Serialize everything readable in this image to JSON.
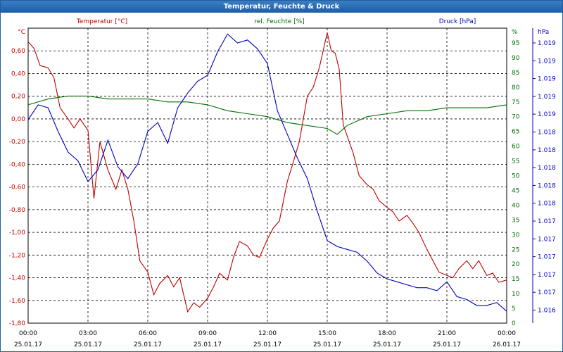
{
  "window": {
    "title": "Temperatur, Feuchte & Druck"
  },
  "chart_data": {
    "type": "line",
    "grid": true,
    "x_ticks": [
      {
        "time": "00:00",
        "date": "25.01.17"
      },
      {
        "time": "03:00",
        "date": "25.01.17"
      },
      {
        "time": "06:00",
        "date": "25.01.17"
      },
      {
        "time": "09:00",
        "date": "25.01.17"
      },
      {
        "time": "12:00",
        "date": "25.01.17"
      },
      {
        "time": "15:00",
        "date": "25.01.17"
      },
      {
        "time": "18:00",
        "date": "25.01.17"
      },
      {
        "time": "21:00",
        "date": "25.01.17"
      },
      {
        "time": "00:00",
        "date": "26.01.17"
      }
    ],
    "axes": {
      "temperature": {
        "label": "Temperatur [°C]",
        "unit": "°C",
        "color": "#c00000",
        "ylim": [
          -1.8,
          0.8
        ],
        "ticks": [
          "0,60",
          "0,40",
          "0,20",
          "0,00",
          "-0,20",
          "-0,40",
          "-0,60",
          "-0,80",
          "-1,00",
          "-1,20",
          "-1,40",
          "-1,60",
          "-1,80"
        ],
        "tick_values": [
          0.6,
          0.4,
          0.2,
          0.0,
          -0.2,
          -0.4,
          -0.6,
          -0.8,
          -1.0,
          -1.2,
          -1.4,
          -1.6,
          -1.8
        ]
      },
      "humidity": {
        "label": "rel. Feuchte [%]",
        "unit": "%",
        "color": "#007000",
        "ylim": [
          0,
          100
        ],
        "ticks": [
          "95",
          "90",
          "85",
          "80",
          "75",
          "70",
          "65",
          "60",
          "55",
          "50",
          "45",
          "40",
          "35",
          "30",
          "25",
          "20",
          "15",
          "10",
          "5",
          "0"
        ],
        "tick_values": [
          95,
          90,
          85,
          80,
          75,
          70,
          65,
          60,
          55,
          50,
          45,
          40,
          35,
          30,
          25,
          20,
          15,
          10,
          5,
          0
        ]
      },
      "pressure": {
        "label": "Druck [hPa]",
        "unit": "hPa",
        "color": "#0000c0",
        "ticks": [
          "1.019",
          "1.019",
          "1.019",
          "1.019",
          "1.019",
          "1.018",
          "1.018",
          "1.018",
          "1.018",
          "1.018",
          "1.017",
          "1.017",
          "1.017",
          "1.017",
          "1.017",
          "1.016"
        ]
      }
    },
    "series": [
      {
        "name": "Temperatur [°C]",
        "axis": "temperature",
        "color": "#c00000",
        "x_hours": [
          0,
          0.3,
          0.6,
          1,
          1.3,
          1.6,
          2,
          2.3,
          2.6,
          3,
          3.3,
          3.6,
          4,
          4.4,
          4.7,
          5,
          5.3,
          5.6,
          6,
          6.3,
          6.6,
          7,
          7.3,
          7.6,
          8,
          8.3,
          8.6,
          9,
          9.3,
          9.6,
          10,
          10.3,
          10.6,
          11,
          11.3,
          11.6,
          12,
          12.3,
          12.6,
          13,
          13.3,
          13.6,
          14,
          14.3,
          14.6,
          15,
          15.2,
          15.4,
          15.6,
          15.8,
          16,
          16.3,
          16.6,
          17,
          17.3,
          17.6,
          18,
          18.3,
          18.6,
          19,
          19.3,
          19.6,
          20,
          20.3,
          20.6,
          21,
          21.3,
          21.6,
          22,
          22.3,
          22.6,
          23,
          23.3,
          23.6,
          24
        ],
        "values": [
          0.68,
          0.62,
          0.47,
          0.45,
          0.36,
          0.1,
          0.0,
          -0.08,
          0.0,
          -0.1,
          -0.7,
          -0.2,
          -0.45,
          -0.62,
          -0.45,
          -0.62,
          -0.9,
          -1.25,
          -1.35,
          -1.55,
          -1.45,
          -1.38,
          -1.48,
          -1.4,
          -1.7,
          -1.62,
          -1.66,
          -1.58,
          -1.48,
          -1.36,
          -1.42,
          -1.22,
          -1.08,
          -1.12,
          -1.2,
          -1.22,
          -1.06,
          -0.96,
          -0.9,
          -0.55,
          -0.38,
          -0.2,
          0.2,
          0.28,
          0.45,
          0.76,
          0.6,
          0.58,
          0.44,
          -0.05,
          -0.15,
          -0.3,
          -0.5,
          -0.58,
          -0.62,
          -0.72,
          -0.78,
          -0.82,
          -0.9,
          -0.85,
          -0.92,
          -1.0,
          -1.15,
          -1.25,
          -1.35,
          -1.38,
          -1.4,
          -1.32,
          -1.25,
          -1.32,
          -1.25,
          -1.38,
          -1.36,
          -1.44,
          -1.42
        ]
      },
      {
        "name": "rel. Feuchte [%]",
        "axis": "humidity",
        "color": "#007000",
        "x_hours": [
          0,
          1,
          2,
          3,
          4,
          5,
          6,
          7,
          8,
          9,
          10,
          11,
          12,
          13,
          14,
          15,
          15.5,
          16,
          17,
          18,
          19,
          20,
          21,
          22,
          23,
          24
        ],
        "values": [
          74,
          76,
          77,
          77,
          76,
          76,
          76,
          75,
          75,
          74,
          72,
          71,
          70,
          68,
          67,
          66,
          64,
          67,
          70,
          71,
          72,
          72,
          73,
          73,
          73,
          74
        ]
      },
      {
        "name": "Druck [hPa]",
        "axis": "pressure",
        "color": "#0000c0",
        "x_hours": [
          0,
          0.5,
          1,
          1.5,
          2,
          2.5,
          3,
          3.5,
          4,
          4.5,
          5,
          5.5,
          6,
          6.5,
          7,
          7.5,
          8,
          8.5,
          9,
          9.5,
          10,
          10.5,
          11,
          11.5,
          12,
          12.5,
          13,
          13.5,
          14,
          14.5,
          15,
          15.5,
          16,
          16.5,
          17,
          17.5,
          18,
          18.5,
          19,
          19.5,
          20,
          20.5,
          21,
          21.5,
          22,
          22.5,
          23,
          23.5,
          24
        ],
        "values": [
          69,
          74,
          73,
          65,
          58,
          55,
          48,
          52,
          62,
          53,
          49,
          54,
          65,
          68,
          61,
          73,
          78,
          82,
          84,
          92,
          98,
          95,
          96,
          93,
          88,
          72,
          64,
          56,
          49,
          38,
          28,
          26,
          25,
          24,
          21,
          17,
          15,
          14,
          13,
          12,
          12,
          11,
          14,
          9,
          8,
          6,
          6,
          7,
          4
        ]
      }
    ]
  }
}
